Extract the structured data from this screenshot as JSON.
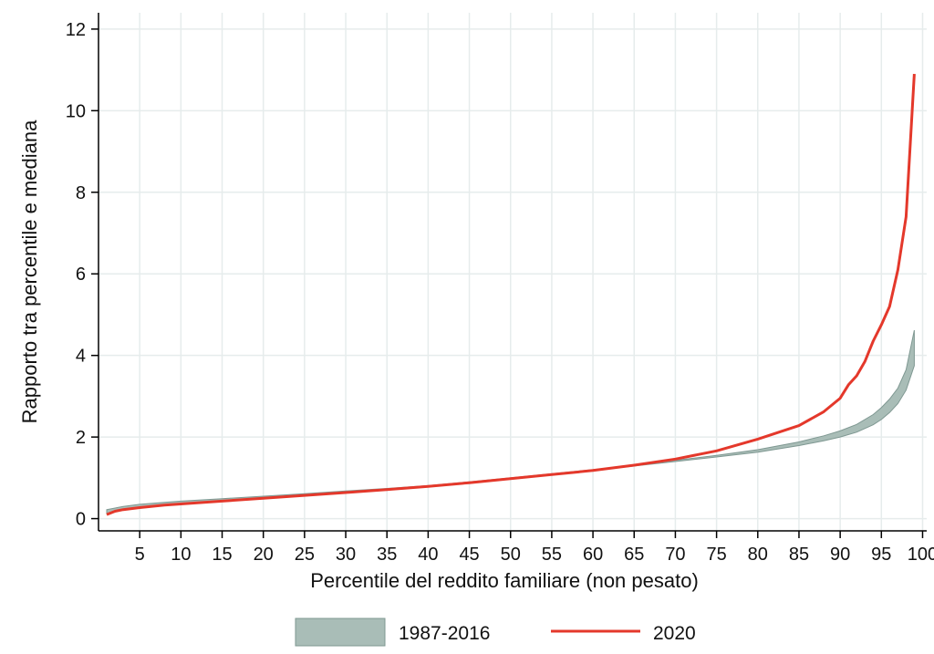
{
  "chart_data": {
    "type": "area",
    "title": "",
    "xlabel": "Percentile del reddito familiare (non pesato)",
    "ylabel": "Rapporto tra percentile e mediana",
    "xlim": [
      0,
      100.5
    ],
    "ylim": [
      -0.3,
      12.4
    ],
    "xticks": [
      5,
      10,
      15,
      20,
      25,
      30,
      35,
      40,
      45,
      50,
      55,
      60,
      65,
      70,
      75,
      80,
      85,
      90,
      95,
      100
    ],
    "yticks": [
      0,
      2,
      4,
      6,
      8,
      10,
      12
    ],
    "grid": true,
    "legend_position": "bottom",
    "series": [
      {
        "name": "1987-2016",
        "kind": "band",
        "color": "#a9bdb7",
        "edge_color": "#7f9892",
        "x": [
          1,
          3,
          5,
          8,
          10,
          15,
          20,
          25,
          30,
          35,
          40,
          45,
          50,
          55,
          60,
          65,
          70,
          75,
          80,
          85,
          88,
          90,
          92,
          94,
          95,
          96,
          97,
          98,
          99
        ],
        "lower": [
          0.12,
          0.22,
          0.27,
          0.33,
          0.36,
          0.43,
          0.5,
          0.57,
          0.64,
          0.71,
          0.79,
          0.88,
          0.98,
          1.08,
          1.18,
          1.29,
          1.4,
          1.51,
          1.63,
          1.79,
          1.91,
          2.0,
          2.12,
          2.3,
          2.43,
          2.6,
          2.82,
          3.15,
          3.75
        ],
        "upper": [
          0.22,
          0.3,
          0.35,
          0.4,
          0.43,
          0.49,
          0.55,
          0.61,
          0.68,
          0.74,
          0.81,
          0.9,
          1.0,
          1.1,
          1.2,
          1.31,
          1.43,
          1.55,
          1.69,
          1.88,
          2.03,
          2.15,
          2.31,
          2.55,
          2.72,
          2.93,
          3.2,
          3.65,
          4.62
        ]
      },
      {
        "name": "2020",
        "kind": "line",
        "color": "#e4382b",
        "x": [
          1,
          2,
          3,
          5,
          8,
          10,
          15,
          20,
          25,
          30,
          35,
          40,
          45,
          50,
          55,
          60,
          65,
          70,
          75,
          80,
          85,
          88,
          90,
          91,
          92,
          93,
          94,
          95,
          96,
          97,
          98,
          99
        ],
        "y": [
          0.1,
          0.18,
          0.22,
          0.27,
          0.33,
          0.36,
          0.43,
          0.5,
          0.57,
          0.64,
          0.71,
          0.79,
          0.88,
          0.98,
          1.08,
          1.18,
          1.31,
          1.46,
          1.66,
          1.95,
          2.28,
          2.62,
          2.95,
          3.28,
          3.5,
          3.85,
          4.35,
          4.75,
          5.2,
          6.1,
          7.4,
          10.9
        ]
      }
    ]
  }
}
